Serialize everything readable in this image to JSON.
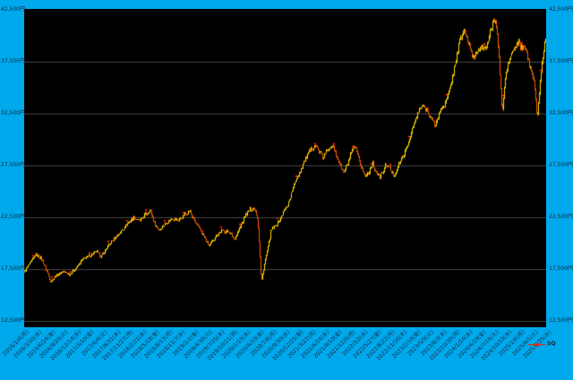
{
  "window": {
    "background_color": "#00A8EC",
    "plot_background_color": "#000000",
    "text_color": "#14283A"
  },
  "legend": {
    "label": "SQ",
    "color": "#E8250D",
    "position": "bottom-right"
  },
  "y_axis": {
    "unit": "円",
    "side": "both",
    "labels": [
      "42,500円",
      "37,500円",
      "32,500円",
      "27,500円",
      "22,500円",
      "17,500円",
      "12,500円"
    ],
    "values": [
      42500,
      37500,
      32500,
      27500,
      22500,
      17500,
      12500
    ]
  },
  "x_axis": {
    "rotation_deg": -45,
    "labels": [
      "2016/1/4(月)",
      "2016/3/30(水)",
      "2016/6/24(金)",
      "2016/9/20(火)",
      "2016/12/14(水)",
      "2017/3/10(金)",
      "2017/6/6(火)",
      "2017/8/31(木)",
      "2017/11/27(月)",
      "2018/2/21(水)",
      "2018/5/18(金)",
      "2018/8/13(月)",
      "2018/11/7(水)",
      "2019/2/1(金)",
      "2019/4/30(火)",
      "2019/7/25(木)",
      "2019/10/21(月)",
      "2020/1/15(水)",
      "2020/4/10(金)",
      "2020/7/6(月)",
      "2020/9/30(水)",
      "2020/12/25(金)",
      "2021/3/22(月)",
      "2021/6/16(水)",
      "2021/9/10(金)",
      "2021/12/6(月)",
      "2022/3/2(水)",
      "2022/5/27(金)",
      "2022/8/22(月)",
      "2022/11/16(水)",
      "2023/2/10(金)",
      "2023/5/9(火)",
      "2023/8/3(木)",
      "2023/10/30(月)",
      "2024/1/24(水)",
      "2024/4/19(金)",
      "2024/7/16(火)",
      "2024/10/10(木)",
      "2025/1/6(月)",
      "2025/4/1(火)",
      "2025/6/25(水)"
    ]
  },
  "chart_data": {
    "type": "candlestick",
    "title": "",
    "xlabel": "",
    "ylabel": "円",
    "ylim": [
      11950,
      42590
    ],
    "grid": "horizontal",
    "gridline_values": [
      37500,
      32500,
      27500,
      22500,
      17500,
      12500
    ],
    "legend_entries": [
      "SQ"
    ],
    "colors": {
      "up_body": "#FFE000",
      "down_body": "#FF5A00",
      "up_wick": "#C7A800",
      "down_wick": "#9C4A00",
      "sq_marker": "#FF1E00",
      "grid": "#474747"
    },
    "series": [
      {
        "name": "price",
        "description": "approximate close path sampled from chart; x = px offset in 583px plot, y = 円",
        "anchors": [
          [
            0,
            17200
          ],
          [
            6,
            18000
          ],
          [
            13,
            18900
          ],
          [
            19,
            18600
          ],
          [
            25,
            17400
          ],
          [
            30,
            16300
          ],
          [
            35,
            16800
          ],
          [
            43,
            17300
          ],
          [
            51,
            17000
          ],
          [
            58,
            17600
          ],
          [
            65,
            18400
          ],
          [
            73,
            18800
          ],
          [
            81,
            19200
          ],
          [
            86,
            18700
          ],
          [
            93,
            19600
          ],
          [
            101,
            20500
          ],
          [
            108,
            21100
          ],
          [
            115,
            21900
          ],
          [
            123,
            22500
          ],
          [
            129,
            22100
          ],
          [
            135,
            22700
          ],
          [
            141,
            23200
          ],
          [
            146,
            21800
          ],
          [
            151,
            21300
          ],
          [
            158,
            21900
          ],
          [
            165,
            22400
          ],
          [
            172,
            22200
          ],
          [
            179,
            22700
          ],
          [
            185,
            23100
          ],
          [
            191,
            22000
          ],
          [
            197,
            21300
          ],
          [
            203,
            20300
          ],
          [
            207,
            19700
          ],
          [
            213,
            20600
          ],
          [
            221,
            21200
          ],
          [
            229,
            21100
          ],
          [
            235,
            20400
          ],
          [
            241,
            21500
          ],
          [
            247,
            22700
          ],
          [
            253,
            23300
          ],
          [
            258,
            23400
          ],
          [
            261,
            22300
          ],
          [
            263,
            19500
          ],
          [
            265,
            16200
          ],
          [
            268,
            17800
          ],
          [
            272,
            19400
          ],
          [
            276,
            21200
          ],
          [
            281,
            21700
          ],
          [
            286,
            22300
          ],
          [
            290,
            23100
          ],
          [
            295,
            23800
          ],
          [
            299,
            24900
          ],
          [
            304,
            26200
          ],
          [
            309,
            27100
          ],
          [
            313,
            27900
          ],
          [
            317,
            28500
          ],
          [
            321,
            29100
          ],
          [
            325,
            29500
          ],
          [
            329,
            29000
          ],
          [
            334,
            28200
          ],
          [
            339,
            29000
          ],
          [
            344,
            29500
          ],
          [
            348,
            28600
          ],
          [
            353,
            27600
          ],
          [
            357,
            26800
          ],
          [
            361,
            27500
          ],
          [
            365,
            28600
          ],
          [
            369,
            29300
          ],
          [
            373,
            28300
          ],
          [
            377,
            27300
          ],
          [
            381,
            26400
          ],
          [
            385,
            26900
          ],
          [
            389,
            27700
          ],
          [
            393,
            26900
          ],
          [
            397,
            26300
          ],
          [
            401,
            26900
          ],
          [
            405,
            27600
          ],
          [
            409,
            27100
          ],
          [
            413,
            26500
          ],
          [
            417,
            27300
          ],
          [
            421,
            28000
          ],
          [
            426,
            28800
          ],
          [
            431,
            30200
          ],
          [
            436,
            31600
          ],
          [
            441,
            32700
          ],
          [
            445,
            33300
          ],
          [
            450,
            32800
          ],
          [
            455,
            32000
          ],
          [
            459,
            31300
          ],
          [
            463,
            32300
          ],
          [
            467,
            33200
          ],
          [
            471,
            33500
          ],
          [
            475,
            34700
          ],
          [
            479,
            36200
          ],
          [
            483,
            38000
          ],
          [
            487,
            39600
          ],
          [
            491,
            40500
          ],
          [
            495,
            39700
          ],
          [
            499,
            38400
          ],
          [
            502,
            37900
          ],
          [
            506,
            38500
          ],
          [
            510,
            39100
          ],
          [
            514,
            38500
          ],
          [
            518,
            39400
          ],
          [
            522,
            40700
          ],
          [
            526,
            41900
          ],
          [
            529,
            39800
          ],
          [
            532,
            35800
          ],
          [
            534,
            32300
          ],
          [
            537,
            35600
          ],
          [
            540,
            37100
          ],
          [
            544,
            38200
          ],
          [
            548,
            38800
          ],
          [
            552,
            39400
          ],
          [
            556,
            38700
          ],
          [
            560,
            39000
          ],
          [
            564,
            37300
          ],
          [
            567,
            36700
          ],
          [
            570,
            35500
          ],
          [
            572,
            33300
          ],
          [
            573,
            31500
          ],
          [
            575,
            34200
          ],
          [
            577,
            36000
          ],
          [
            579,
            37600
          ],
          [
            581,
            38900
          ],
          [
            583,
            39900
          ]
        ]
      },
      {
        "name": "SQ",
        "description": "red markers plotted above candle highs roughly monthly",
        "marker": "red-dash"
      }
    ]
  }
}
